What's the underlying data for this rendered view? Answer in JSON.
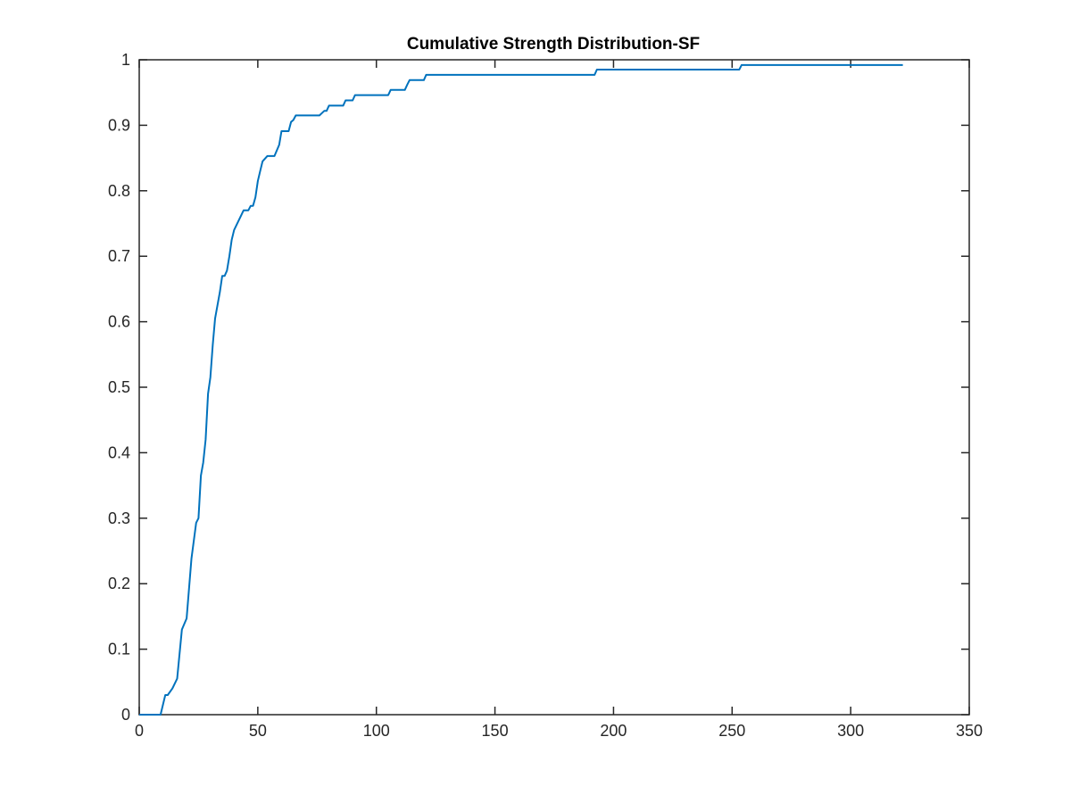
{
  "chart_data": {
    "type": "line",
    "title": "Cumulative Strength Distribution-SF",
    "xlabel": "",
    "ylabel": "",
    "xlim": [
      0,
      350
    ],
    "ylim": [
      0,
      1
    ],
    "xticks": [
      0,
      50,
      100,
      150,
      200,
      250,
      300,
      350
    ],
    "yticks": [
      0,
      0.1,
      0.2,
      0.3,
      0.4,
      0.5,
      0.6,
      0.7,
      0.8,
      0.9,
      1
    ],
    "grid": false,
    "colors": {
      "line": "#0072BD",
      "axes": "#262626"
    },
    "series": [
      {
        "x": [
          0,
          9,
          11,
          12,
          14,
          16,
          18,
          20,
          22,
          24,
          25,
          26,
          27,
          28,
          29,
          30,
          31,
          32,
          34,
          35,
          36,
          37,
          38,
          39,
          40,
          42,
          44,
          46,
          47,
          48,
          49,
          50,
          51,
          52,
          54,
          57,
          59,
          60,
          63,
          64,
          65,
          66,
          67,
          70,
          73,
          76,
          78,
          79,
          80,
          81,
          84,
          86,
          87,
          89,
          90,
          91,
          94,
          98,
          105,
          106,
          110,
          112,
          113,
          114,
          115,
          118,
          120,
          121,
          125,
          130,
          140,
          150,
          160,
          170,
          180,
          190,
          192,
          193,
          200,
          210,
          220,
          230,
          240,
          250,
          253,
          254,
          260,
          270,
          280,
          290,
          300,
          310,
          322
        ],
        "y": [
          0,
          0,
          0.03,
          0.03,
          0.04,
          0.055,
          0.13,
          0.147,
          0.238,
          0.293,
          0.3,
          0.365,
          0.385,
          0.42,
          0.49,
          0.515,
          0.565,
          0.605,
          0.645,
          0.67,
          0.67,
          0.678,
          0.7,
          0.725,
          0.74,
          0.755,
          0.77,
          0.77,
          0.777,
          0.777,
          0.79,
          0.815,
          0.83,
          0.845,
          0.853,
          0.853,
          0.87,
          0.891,
          0.891,
          0.905,
          0.908,
          0.915,
          0.915,
          0.915,
          0.915,
          0.915,
          0.922,
          0.922,
          0.93,
          0.93,
          0.93,
          0.93,
          0.938,
          0.938,
          0.938,
          0.946,
          0.946,
          0.946,
          0.946,
          0.954,
          0.954,
          0.954,
          0.962,
          0.969,
          0.969,
          0.969,
          0.969,
          0.977,
          0.977,
          0.977,
          0.977,
          0.977,
          0.977,
          0.977,
          0.977,
          0.977,
          0.977,
          0.985,
          0.985,
          0.985,
          0.985,
          0.985,
          0.985,
          0.985,
          0.985,
          0.992,
          0.992,
          0.992,
          0.992,
          0.992,
          0.992,
          0.992,
          0.992
        ]
      }
    ]
  }
}
